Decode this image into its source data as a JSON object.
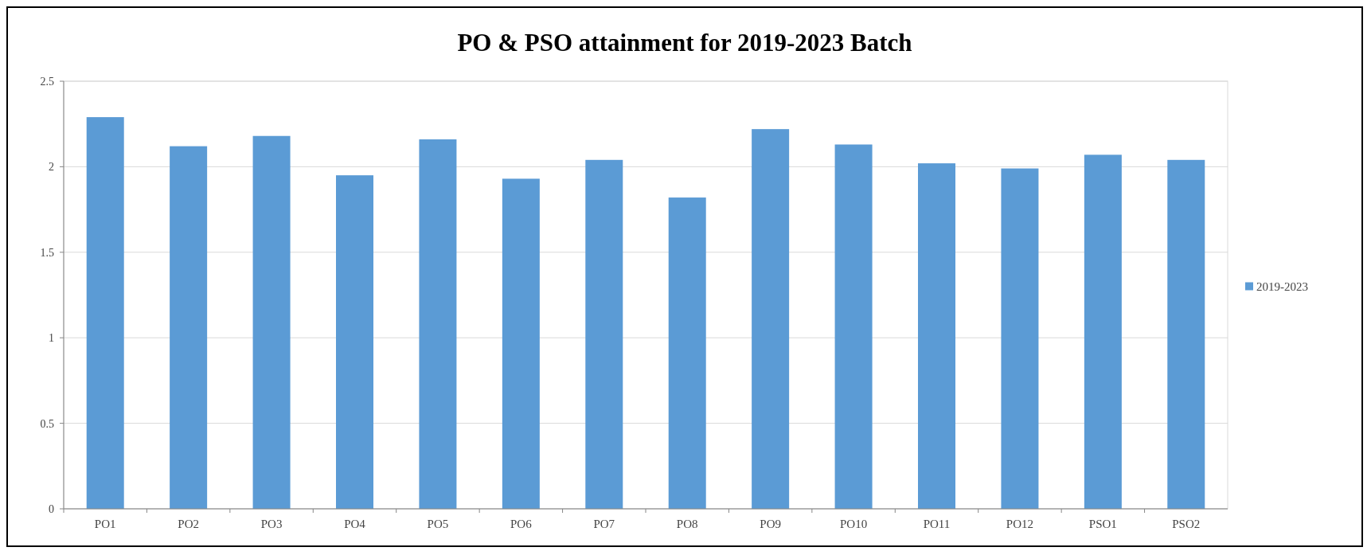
{
  "chart_data": {
    "type": "bar",
    "title": "PO & PSO attainment for 2019-2023 Batch",
    "categories": [
      "PO1",
      "PO2",
      "PO3",
      "PO4",
      "PO5",
      "PO6",
      "PO7",
      "PO8",
      "PO9",
      "PO10",
      "PO11",
      "PO12",
      "PSO1",
      "PSO2"
    ],
    "series": [
      {
        "name": "2019-2023",
        "color": "#5b9bd5",
        "values": [
          2.29,
          2.12,
          2.18,
          1.95,
          2.16,
          1.93,
          2.04,
          1.82,
          2.22,
          2.13,
          2.02,
          1.99,
          2.07,
          2.04
        ]
      }
    ],
    "ylim": [
      0,
      2.5
    ],
    "yticks": [
      0,
      0.5,
      1,
      1.5,
      2,
      2.5
    ],
    "grid": "y",
    "legend": "right"
  }
}
